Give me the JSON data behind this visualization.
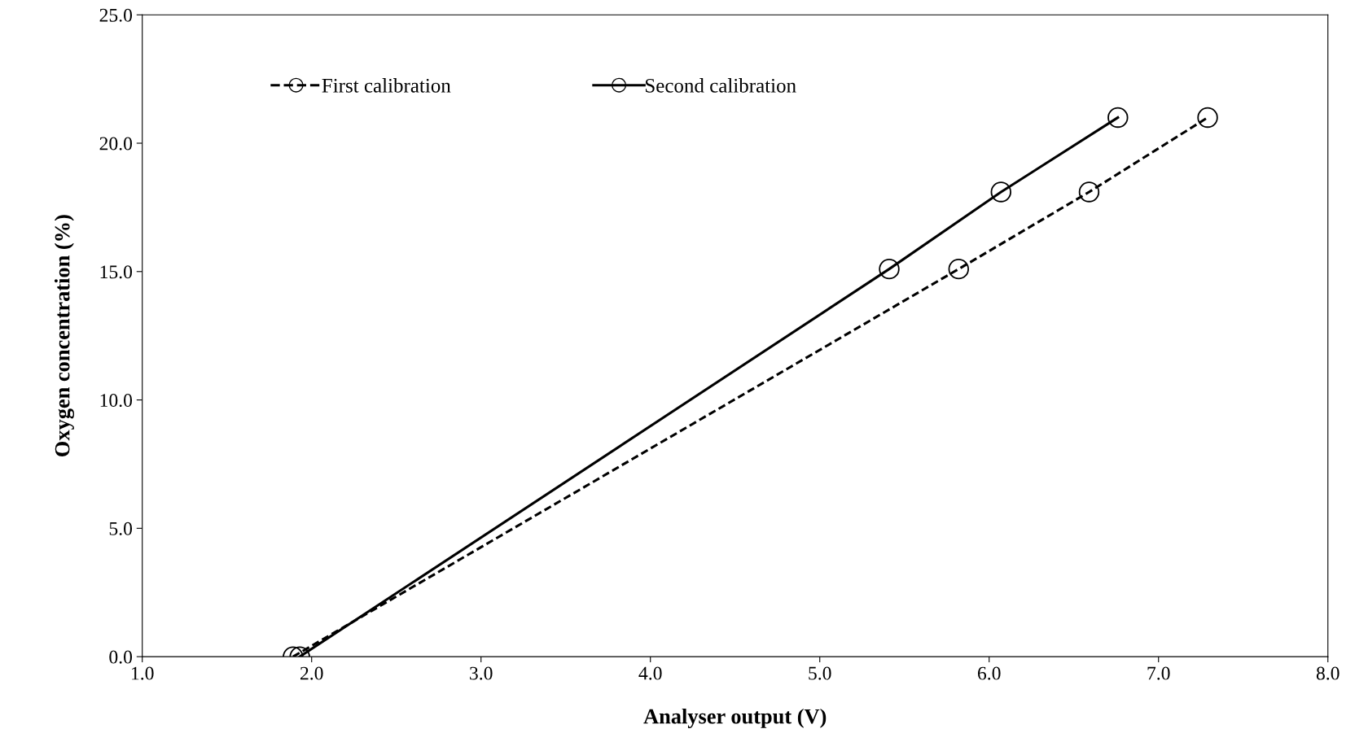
{
  "chart_data": {
    "type": "line",
    "xlabel": "Analyser output (V)",
    "ylabel": "Oxygen concentration (%)",
    "xlim": [
      1.0,
      8.0
    ],
    "xticks": [
      {
        "value": 1,
        "label": "1.0"
      },
      {
        "value": 2,
        "label": "2.0"
      },
      {
        "value": 3,
        "label": "3.0"
      },
      {
        "value": 4,
        "label": "4.0"
      },
      {
        "value": 5,
        "label": "5.0"
      },
      {
        "value": 6,
        "label": "6.0"
      },
      {
        "value": 7,
        "label": "7.0"
      },
      {
        "value": 8,
        "label": "8.0"
      }
    ],
    "ylim": [
      0,
      25
    ],
    "yticks": [
      {
        "value": 0,
        "label": "0.0"
      },
      {
        "value": 5,
        "label": "5.0"
      },
      {
        "value": 10,
        "label": "10.0"
      },
      {
        "value": 15,
        "label": "15.0"
      },
      {
        "value": 20,
        "label": "20.0"
      },
      {
        "value": 25,
        "label": "25.0"
      }
    ],
    "grid": false,
    "legend": "top",
    "marker": "circle",
    "series": [
      {
        "name": "First calibration",
        "color": "#000000",
        "line_style": "dashed",
        "x": [
          1.89,
          5.82,
          6.59,
          7.29
        ],
        "values": [
          0,
          15.1,
          18.1,
          21.0
        ]
      },
      {
        "name": "Second calibration",
        "color": "#000000",
        "line_style": "solid",
        "x": [
          1.93,
          5.41,
          6.07,
          6.76
        ],
        "values": [
          0,
          15.1,
          18.1,
          21.0
        ]
      }
    ]
  }
}
